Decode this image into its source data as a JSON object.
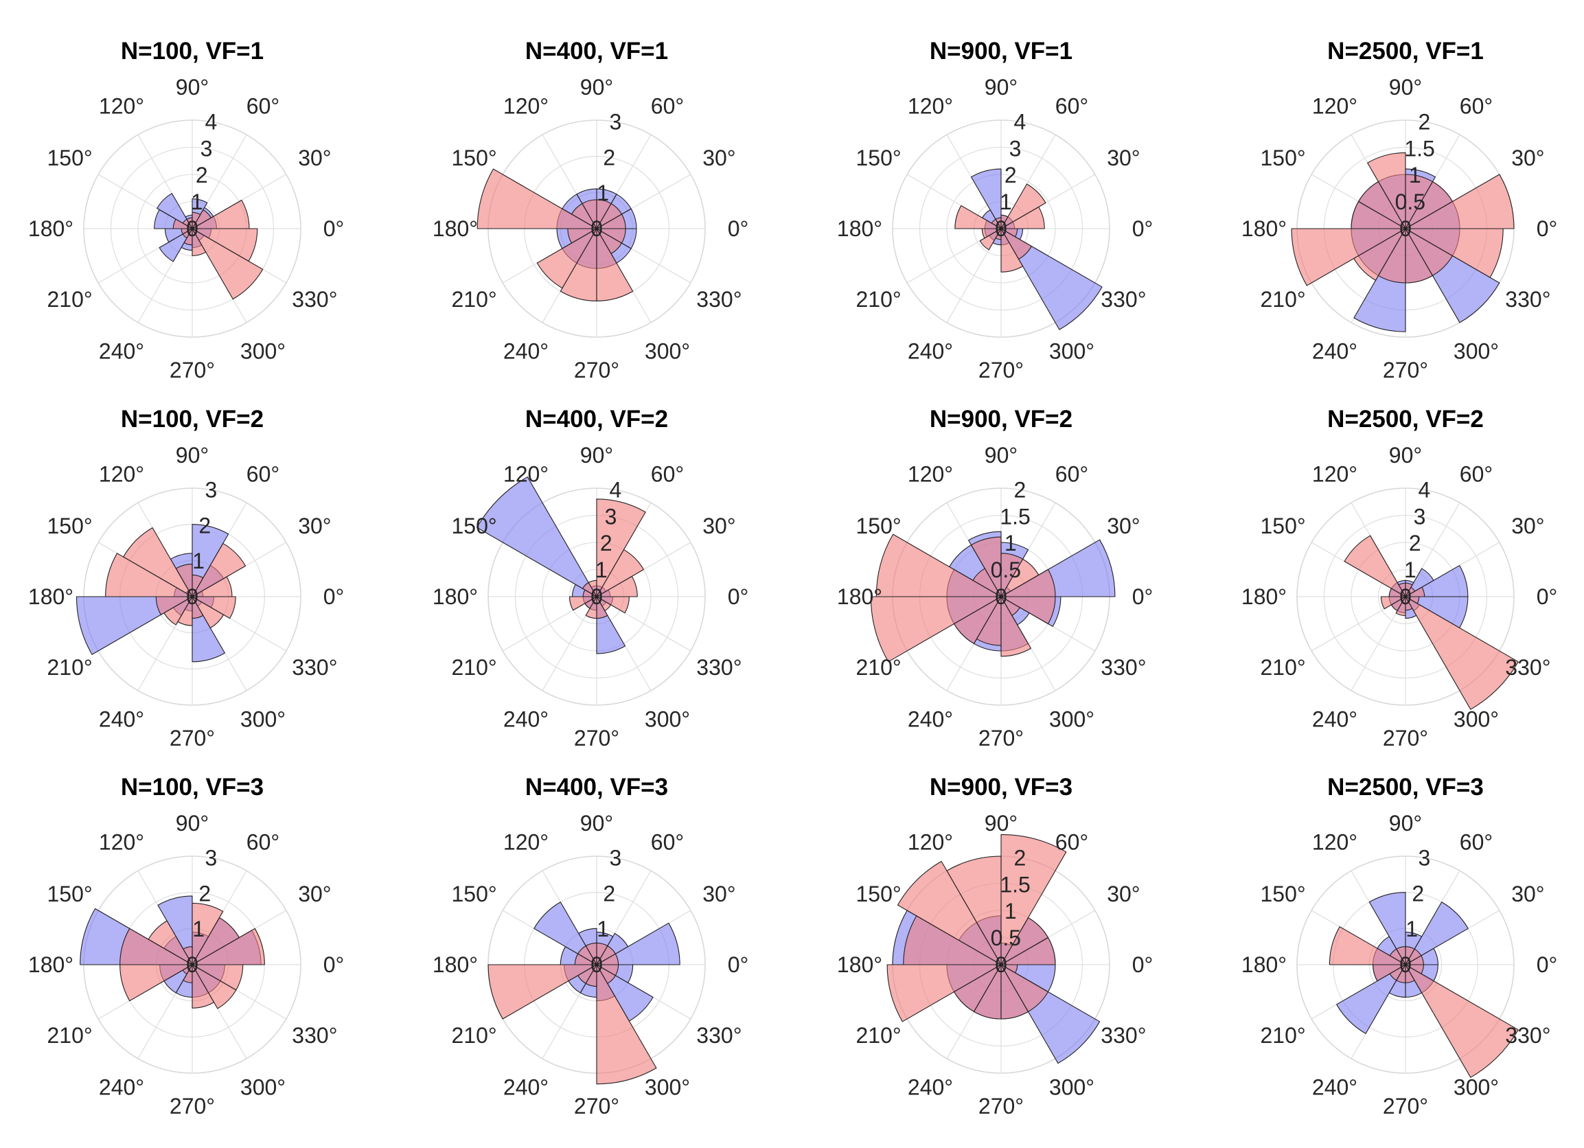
{
  "figure": {
    "rows": 3,
    "cols": 4,
    "colors": {
      "series_a": "#8080f2",
      "series_b": "#f27f7f",
      "edge": "#222222",
      "grid": "#e0e0e0",
      "text": "#262626"
    },
    "angle_labels": [
      "0°",
      "30°",
      "60°",
      "90°",
      "120°",
      "150°",
      "180°",
      "210°",
      "240°",
      "270°",
      "300°",
      "330°"
    ]
  },
  "chart_data": [
    {
      "type": "polar-histogram",
      "title": "N=100, VF=1",
      "rlim": [
        0,
        4
      ],
      "rticks": [
        "1",
        "2",
        "3",
        "4"
      ],
      "sector_width_deg": 30,
      "series": [
        {
          "name": "series_a",
          "values": [
            0.9,
            0.9,
            1.1,
            0.5,
            1.5,
            1.4,
            1.0,
            1.4,
            0.8,
            0.7,
            0.5,
            0.7
          ]
        },
        {
          "name": "series_b",
          "values": [
            2.1,
            0.8,
            0.6,
            0.4,
            0.4,
            0.7,
            0.4,
            0.4,
            0.6,
            1.0,
            3.0,
            2.4
          ]
        }
      ]
    },
    {
      "type": "polar-histogram",
      "title": "N=400, VF=1",
      "rlim": [
        0,
        3
      ],
      "rticks": [
        "1",
        "2",
        "3"
      ],
      "sector_width_deg": 30,
      "series": [
        {
          "name": "series_a",
          "values": [
            1.1,
            1.1,
            1.1,
            1.1,
            1.1,
            1.1,
            1.1,
            1.1,
            1.1,
            1.1,
            1.1,
            1.1
          ]
        },
        {
          "name": "series_b",
          "values": [
            0.8,
            0.8,
            0.8,
            0.8,
            0.8,
            3.3,
            0.8,
            1.9,
            2.0,
            2.0,
            0.8,
            0.8
          ]
        }
      ]
    },
    {
      "type": "polar-histogram",
      "title": "N=900, VF=1",
      "rlim": [
        0,
        4
      ],
      "rticks": [
        "1",
        "2",
        "3",
        "4"
      ],
      "sector_width_deg": 30,
      "series": [
        {
          "name": "series_a",
          "values": [
            0.5,
            0.5,
            0.5,
            2.2,
            0.8,
            0.6,
            0.6,
            0.5,
            0.6,
            0.6,
            4.3,
            0.8
          ]
        },
        {
          "name": "series_b",
          "values": [
            1.6,
            1.9,
            0.5,
            0.4,
            0.4,
            1.7,
            0.7,
            0.9,
            0.4,
            1.6,
            1.3,
            0.6
          ]
        }
      ]
    },
    {
      "type": "polar-histogram",
      "title": "N=2500, VF=1",
      "rlim": [
        0,
        2
      ],
      "rticks": [
        "0.5",
        "1",
        "1.5",
        "2"
      ],
      "sector_width_deg": 30,
      "series": [
        {
          "name": "series_a",
          "values": [
            1.0,
            1.0,
            1.1,
            1.0,
            1.0,
            1.0,
            1.0,
            1.0,
            1.9,
            1.0,
            2.0,
            1.0
          ]
        },
        {
          "name": "series_b",
          "values": [
            2.0,
            1.0,
            1.0,
            1.4,
            1.0,
            1.0,
            2.1,
            1.1,
            1.0,
            1.0,
            1.0,
            1.8
          ]
        }
      ]
    },
    {
      "type": "polar-histogram",
      "title": "N=100, VF=2",
      "rlim": [
        0,
        3
      ],
      "rticks": [
        "1",
        "2",
        "3"
      ],
      "sector_width_deg": 30,
      "series": [
        {
          "name": "series_a",
          "values": [
            0.3,
            1.0,
            2.0,
            1.2,
            0.2,
            0.5,
            3.2,
            0.6,
            0.4,
            1.8,
            0.3,
            0.6
          ]
        },
        {
          "name": "series_b",
          "values": [
            1.1,
            1.7,
            0.6,
            0.9,
            2.2,
            2.4,
            1.0,
            0.9,
            0.8,
            0.6,
            1.0,
            1.2
          ]
        }
      ]
    },
    {
      "type": "polar-histogram",
      "title": "N=400, VF=2",
      "rlim": [
        0,
        4
      ],
      "rticks": [
        "1",
        "2",
        "3",
        "4"
      ],
      "sector_width_deg": 30,
      "series": [
        {
          "name": "series_a",
          "values": [
            0.5,
            0.4,
            0.4,
            0.4,
            5.1,
            0.9,
            0.5,
            0.5,
            0.5,
            2.1,
            0.4,
            0.6
          ]
        },
        {
          "name": "series_b",
          "values": [
            1.5,
            2.0,
            3.6,
            0.6,
            0.6,
            0.5,
            1.0,
            0.5,
            0.8,
            0.8,
            0.6,
            1.2
          ]
        }
      ]
    },
    {
      "type": "polar-histogram",
      "title": "N=900, VF=2",
      "rlim": [
        0,
        2
      ],
      "rticks": [
        "0.5",
        "1",
        "1.5",
        "2"
      ],
      "sector_width_deg": 30,
      "series": [
        {
          "name": "series_a",
          "values": [
            2.1,
            0.2,
            1.0,
            1.2,
            1.1,
            1.0,
            1.0,
            1.0,
            1.0,
            1.0,
            0.6,
            1.1
          ]
        },
        {
          "name": "series_b",
          "values": [
            1.0,
            0.8,
            0.8,
            1.1,
            0.6,
            2.3,
            2.4,
            1.0,
            0.9,
            1.1,
            0.4,
            1.0
          ]
        }
      ]
    },
    {
      "type": "polar-histogram",
      "title": "N=2500, VF=2",
      "rlim": [
        0,
        4
      ],
      "rticks": [
        "1",
        "2",
        "3",
        "4"
      ],
      "sector_width_deg": 30,
      "series": [
        {
          "name": "series_a",
          "values": [
            2.3,
            1.2,
            0.6,
            0.6,
            0.6,
            0.6,
            0.6,
            0.6,
            0.6,
            0.8,
            0.6,
            2.3
          ]
        },
        {
          "name": "series_b",
          "values": [
            0.7,
            0.4,
            0.5,
            0.5,
            2.6,
            0.6,
            0.9,
            0.6,
            0.7,
            0.5,
            4.8,
            0.5
          ]
        }
      ]
    },
    {
      "type": "polar-histogram",
      "title": "N=100, VF=3",
      "rlim": [
        0,
        3
      ],
      "rticks": [
        "1",
        "2",
        "3"
      ],
      "sector_width_deg": 30,
      "series": [
        {
          "name": "series_a",
          "values": [
            1.9,
            1.5,
            0.9,
            1.9,
            0.9,
            3.1,
            0.9,
            0.9,
            0.9,
            0.9,
            0.9,
            0.9
          ]
        },
        {
          "name": "series_b",
          "values": [
            2.0,
            1.5,
            1.7,
            0.5,
            1.4,
            2.0,
            2.0,
            0.3,
            0.5,
            1.2,
            1.4,
            1.4
          ]
        }
      ]
    },
    {
      "type": "polar-histogram",
      "title": "N=400, VF=3",
      "rlim": [
        0,
        3
      ],
      "rticks": [
        "1",
        "2",
        "3"
      ],
      "sector_width_deg": 30,
      "series": [
        {
          "name": "series_a",
          "values": [
            2.3,
            1.0,
            0.9,
            1.0,
            2.0,
            1.0,
            0.9,
            0.9,
            0.9,
            1.0,
            1.8,
            1.0
          ]
        },
        {
          "name": "series_b",
          "values": [
            0.6,
            0.6,
            0.6,
            0.6,
            0.6,
            0.6,
            3.0,
            0.6,
            0.6,
            3.3,
            0.6,
            0.6
          ]
        }
      ]
    },
    {
      "type": "polar-histogram",
      "title": "N=900, VF=3",
      "rlim": [
        0,
        2
      ],
      "rticks": [
        "0.5",
        "1",
        "1.5",
        "2"
      ],
      "sector_width_deg": 30,
      "series": [
        {
          "name": "series_a",
          "values": [
            1.0,
            1.0,
            0.4,
            0.9,
            0.9,
            2.0,
            1.0,
            1.0,
            1.0,
            1.0,
            2.1,
            1.0
          ]
        },
        {
          "name": "series_b",
          "values": [
            1.0,
            1.0,
            2.4,
            2.0,
            2.2,
            1.8,
            2.1,
            1.0,
            1.0,
            1.0,
            1.0,
            0.3
          ]
        }
      ]
    },
    {
      "type": "polar-histogram",
      "title": "N=2500, VF=3",
      "rlim": [
        0,
        3
      ],
      "rticks": [
        "1",
        "2",
        "3"
      ],
      "sector_width_deg": 30,
      "series": [
        {
          "name": "series_a",
          "values": [
            0.9,
            2.0,
            0.9,
            2.0,
            0.9,
            0.9,
            0.9,
            2.2,
            0.9,
            0.9,
            0.9,
            0.9
          ]
        },
        {
          "name": "series_b",
          "values": [
            0.5,
            0.5,
            0.5,
            0.5,
            0.5,
            2.1,
            0.9,
            0.5,
            0.5,
            0.5,
            3.6,
            0.5
          ]
        }
      ]
    }
  ]
}
